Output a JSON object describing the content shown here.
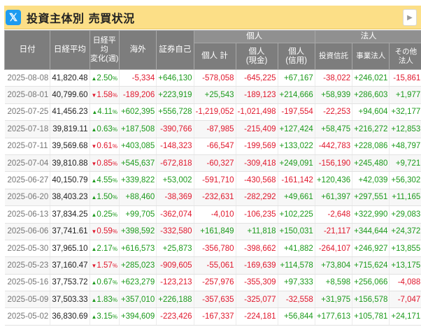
{
  "title": "投資主体別 売買状況",
  "x_logo": "𝕏",
  "headers": {
    "date": "日付",
    "nikkei": "日経平均",
    "change": "日経平均変化(週)",
    "overseas": "海外",
    "securities": "証券自己",
    "individual_group": "個人",
    "ind_total": "個人 計",
    "ind_cash": "個人(現金)",
    "ind_credit": "個人(信用)",
    "corp_group": "法人",
    "trust": "投資信託",
    "business": "事業法人",
    "other": "その他法人"
  },
  "rows": [
    {
      "date": "2025-08-08",
      "nikkei": "41,820.48",
      "dir": "up",
      "chg": "2.50",
      "overseas": "-5,334",
      "sec": "+646,130",
      "ind_total": "-578,058",
      "ind_cash": "-645,225",
      "ind_credit": "+67,167",
      "trust": "-38,022",
      "business": "+246,021",
      "other": "-15,861"
    },
    {
      "date": "2025-08-01",
      "nikkei": "40,799.60",
      "dir": "down",
      "chg": "1.58",
      "overseas": "-189,206",
      "sec": "+223,919",
      "ind_total": "+25,543",
      "ind_cash": "-189,123",
      "ind_credit": "+214,666",
      "trust": "+58,939",
      "business": "+286,603",
      "other": "+1,977"
    },
    {
      "date": "2025-07-25",
      "nikkei": "41,456.23",
      "dir": "up",
      "chg": "4.11",
      "overseas": "+602,395",
      "sec": "+556,728",
      "ind_total": "-1,219,052",
      "ind_cash": "-1,021,498",
      "ind_credit": "-197,554",
      "trust": "-22,253",
      "business": "+94,604",
      "other": "+32,177"
    },
    {
      "date": "2025-07-18",
      "nikkei": "39,819.11",
      "dir": "up",
      "chg": "0.63",
      "overseas": "+187,508",
      "sec": "-390,766",
      "ind_total": "-87,985",
      "ind_cash": "-215,409",
      "ind_credit": "+127,424",
      "trust": "+58,475",
      "business": "+216,272",
      "other": "+12,853"
    },
    {
      "date": "2025-07-11",
      "nikkei": "39,569.68",
      "dir": "down",
      "chg": "0.61",
      "overseas": "+403,085",
      "sec": "-148,323",
      "ind_total": "-66,547",
      "ind_cash": "-199,569",
      "ind_credit": "+133,022",
      "trust": "-442,783",
      "business": "+228,086",
      "other": "+48,797"
    },
    {
      "date": "2025-07-04",
      "nikkei": "39,810.88",
      "dir": "down",
      "chg": "0.85",
      "overseas": "+545,637",
      "sec": "-672,818",
      "ind_total": "-60,327",
      "ind_cash": "-309,418",
      "ind_credit": "+249,091",
      "trust": "-156,190",
      "business": "+245,480",
      "other": "+9,721"
    },
    {
      "date": "2025-06-27",
      "nikkei": "40,150.79",
      "dir": "up",
      "chg": "4.55",
      "overseas": "+339,822",
      "sec": "+53,002",
      "ind_total": "-591,710",
      "ind_cash": "-430,568",
      "ind_credit": "-161,142",
      "trust": "+120,436",
      "business": "+42,039",
      "other": "+56,302"
    },
    {
      "date": "2025-06-20",
      "nikkei": "38,403.23",
      "dir": "up",
      "chg": "1.50",
      "overseas": "+88,460",
      "sec": "-38,369",
      "ind_total": "-232,631",
      "ind_cash": "-282,292",
      "ind_credit": "+49,661",
      "trust": "+61,397",
      "business": "+297,551",
      "other": "+11,165"
    },
    {
      "date": "2025-06-13",
      "nikkei": "37,834.25",
      "dir": "up",
      "chg": "0.25",
      "overseas": "+99,705",
      "sec": "-362,074",
      "ind_total": "-4,010",
      "ind_cash": "-106,235",
      "ind_credit": "+102,225",
      "trust": "-2,648",
      "business": "+322,990",
      "other": "+29,083"
    },
    {
      "date": "2025-06-06",
      "nikkei": "37,741.61",
      "dir": "down",
      "chg": "0.59",
      "overseas": "+398,592",
      "sec": "-332,580",
      "ind_total": "+161,849",
      "ind_cash": "+11,818",
      "ind_credit": "+150,031",
      "trust": "-21,117",
      "business": "+344,644",
      "other": "+24,372"
    },
    {
      "date": "2025-05-30",
      "nikkei": "37,965.10",
      "dir": "up",
      "chg": "2.17",
      "overseas": "+616,573",
      "sec": "+25,873",
      "ind_total": "-356,780",
      "ind_cash": "-398,662",
      "ind_credit": "+41,882",
      "trust": "-264,107",
      "business": "+246,927",
      "other": "+13,855"
    },
    {
      "date": "2025-05-23",
      "nikkei": "37,160.47",
      "dir": "down",
      "chg": "1.57",
      "overseas": "+285,023",
      "sec": "-909,605",
      "ind_total": "-55,061",
      "ind_cash": "-169,639",
      "ind_credit": "+114,578",
      "trust": "+73,804",
      "business": "+715,624",
      "other": "+13,175"
    },
    {
      "date": "2025-05-16",
      "nikkei": "37,753.72",
      "dir": "up",
      "chg": "0.67",
      "overseas": "+623,279",
      "sec": "-123,213",
      "ind_total": "-257,976",
      "ind_cash": "-355,309",
      "ind_credit": "+97,333",
      "trust": "+8,598",
      "business": "+256,066",
      "other": "-4,088"
    },
    {
      "date": "2025-05-09",
      "nikkei": "37,503.33",
      "dir": "up",
      "chg": "1.83",
      "overseas": "+357,010",
      "sec": "+226,188",
      "ind_total": "-357,635",
      "ind_cash": "-325,077",
      "ind_credit": "-32,558",
      "trust": "+31,975",
      "business": "+156,578",
      "other": "-7,047"
    },
    {
      "date": "2025-05-02",
      "nikkei": "36,830.69",
      "dir": "up",
      "chg": "3.15",
      "overseas": "+394,609",
      "sec": "-223,426",
      "ind_total": "-167,337",
      "ind_cash": "-224,181",
      "ind_credit": "+56,844",
      "trust": "+177,613",
      "business": "+105,781",
      "other": "+24,171"
    }
  ]
}
